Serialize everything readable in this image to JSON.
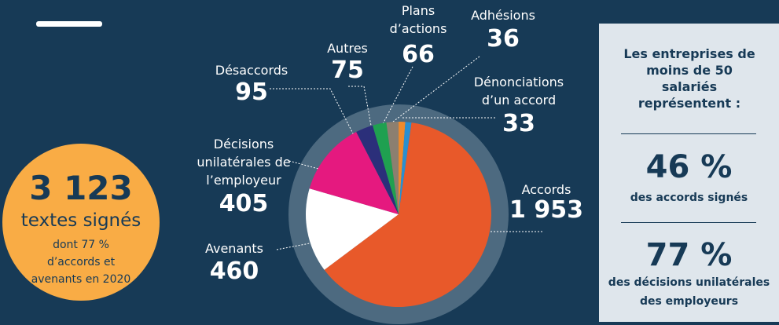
{
  "chart_data": {
    "type": "pie",
    "categories": [
      "Accords",
      "Avenants",
      "Décisions unilatérales de l’employeur",
      "Désaccords",
      "Autres",
      "Plans d’actions",
      "Adhésions",
      "Dénonciations d’un accord"
    ],
    "values": [
      1953,
      460,
      405,
      95,
      75,
      66,
      36,
      33
    ],
    "value_labels": [
      "1 953",
      "460",
      "405",
      "95",
      "75",
      "66",
      "36",
      "33"
    ],
    "colors": [
      "#e8592a",
      "#ffffff",
      "#e5197f",
      "#2b2f7a",
      "#1fa050",
      "#8c7f70",
      "#f08a2c",
      "#2a8fd0"
    ]
  },
  "summary": {
    "total": "3 123",
    "label": "textes signés",
    "note": "dont 77 % d’accords et avenants en 2020"
  },
  "panel": {
    "heading": "Les entreprises de moins de 50 salariés représentent :",
    "stats": [
      {
        "value": "46 %",
        "label": "des accords signés"
      },
      {
        "value": "77 %",
        "label": "des décisions unilatérales des employeurs"
      }
    ]
  }
}
